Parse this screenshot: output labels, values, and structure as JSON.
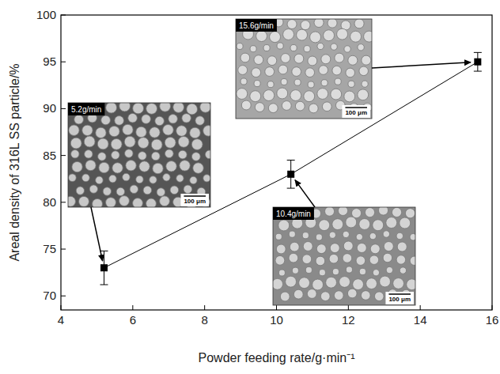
{
  "chart_data": {
    "type": "line",
    "x_label": "Powder feeding rate/g·min⁻¹",
    "y_label": "Areal density of 316L SS particle/%",
    "x": [
      5.2,
      10.4,
      15.6
    ],
    "values": [
      73,
      83,
      95
    ],
    "errors": [
      1.8,
      1.5,
      1.0
    ],
    "color": "#000000",
    "marker": "square",
    "line_style": "solid",
    "xlim": [
      4,
      16
    ],
    "xticks": [
      4,
      6,
      8,
      10,
      12,
      14,
      16
    ],
    "ylim": [
      68.5,
      100
    ],
    "yticks": [
      70,
      75,
      80,
      85,
      90,
      95,
      100
    ],
    "grid": false,
    "annotations": [
      {
        "text": "5.2g/min",
        "scale_bar": "100 μm"
      },
      {
        "text": "10.4g/min",
        "scale_bar": "100 μm"
      },
      {
        "text": "15.6g/min",
        "scale_bar": "100 μm"
      }
    ]
  }
}
